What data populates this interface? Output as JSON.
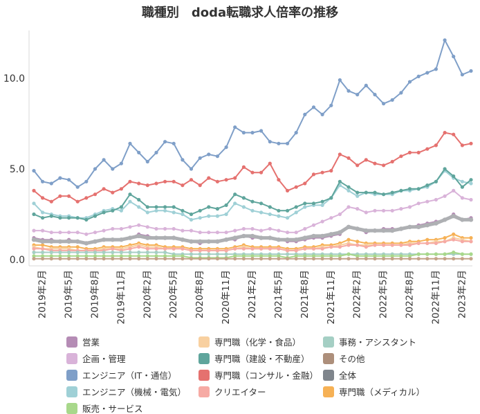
{
  "chart_data": {
    "type": "line",
    "title": "職種別　doda転職求人倍率の推移",
    "xlabel": "",
    "ylabel": "",
    "ylim": [
      0,
      12.5
    ],
    "yticks": [
      "0.0",
      "5.0",
      "10.0"
    ],
    "ytick_values": [
      0,
      5,
      10
    ],
    "grid": false,
    "legend_position": "bottom",
    "x": [
      "2019年1月",
      "2019年2月",
      "2019年3月",
      "2019年4月",
      "2019年5月",
      "2019年6月",
      "2019年7月",
      "2019年8月",
      "2019年9月",
      "2019年10月",
      "2019年11月",
      "2019年12月",
      "2020年1月",
      "2020年2月",
      "2020年3月",
      "2020年4月",
      "2020年5月",
      "2020年6月",
      "2020年7月",
      "2020年8月",
      "2020年9月",
      "2020年10月",
      "2020年11月",
      "2020年12月",
      "2021年1月",
      "2021年2月",
      "2021年3月",
      "2021年4月",
      "2021年5月",
      "2021年6月",
      "2021年7月",
      "2021年8月",
      "2021年9月",
      "2021年10月",
      "2021年11月",
      "2021年12月",
      "2022年1月",
      "2022年2月",
      "2022年3月",
      "2022年4月",
      "2022年5月",
      "2022年6月",
      "2022年7月",
      "2022年8月",
      "2022年9月",
      "2022年10月",
      "2022年11月",
      "2022年12月",
      "2023年1月",
      "2023年2月",
      "2023年3月"
    ],
    "x_tick_labels": [
      "2019年2月",
      "2019年5月",
      "2019年8月",
      "2019年11月",
      "2020年2月",
      "2020年5月",
      "2020年8月",
      "2020年11月",
      "2021年2月",
      "2021年5月",
      "2021年8月",
      "2021年11月",
      "2022年2月",
      "2022年5月",
      "2022年8月",
      "2022年11月",
      "2023年2月"
    ],
    "x_tick_indices": [
      1,
      4,
      7,
      10,
      13,
      16,
      19,
      22,
      25,
      28,
      31,
      34,
      37,
      40,
      43,
      46,
      49
    ],
    "series": [
      {
        "name": "営業",
        "color": "#b58cb5",
        "width": 2,
        "values": [
          1.2,
          1.1,
          1.1,
          1.0,
          1.1,
          1.0,
          0.9,
          1.0,
          1.1,
          1.1,
          1.1,
          1.2,
          1.4,
          1.3,
          1.2,
          1.2,
          1.2,
          1.1,
          1.0,
          0.9,
          1.0,
          1.0,
          1.1,
          1.1,
          1.3,
          1.2,
          1.2,
          1.2,
          1.1,
          1.0,
          1.0,
          1.1,
          1.2,
          1.2,
          1.3,
          1.4,
          1.8,
          1.7,
          1.5,
          1.6,
          1.7,
          1.7,
          1.7,
          1.8,
          1.9,
          2.0,
          2.1,
          2.2,
          2.5,
          2.2,
          2.3
        ]
      },
      {
        "name": "企画・管理",
        "color": "#d9b3d9",
        "width": 2,
        "values": [
          1.6,
          1.6,
          1.5,
          1.5,
          1.5,
          1.5,
          1.4,
          1.5,
          1.6,
          1.7,
          1.7,
          1.8,
          1.9,
          1.8,
          1.7,
          1.7,
          1.7,
          1.6,
          1.6,
          1.5,
          1.5,
          1.5,
          1.5,
          1.6,
          1.7,
          1.7,
          1.6,
          1.7,
          1.6,
          1.5,
          1.5,
          1.7,
          1.9,
          2.1,
          2.3,
          2.5,
          2.9,
          2.8,
          2.6,
          2.7,
          2.7,
          2.7,
          2.8,
          2.9,
          3.1,
          3.2,
          3.3,
          3.5,
          3.8,
          3.4,
          3.3
        ]
      },
      {
        "name": "エンジニア（IT・通信）",
        "color": "#7f9fc8",
        "width": 2,
        "values": [
          4.9,
          4.3,
          4.2,
          4.5,
          4.4,
          4.0,
          4.3,
          5.0,
          5.5,
          5.0,
          5.3,
          6.4,
          5.9,
          5.4,
          5.9,
          6.5,
          6.4,
          5.5,
          5.0,
          5.6,
          5.8,
          5.7,
          6.2,
          7.3,
          7.0,
          7.0,
          7.1,
          6.5,
          6.4,
          6.4,
          7.0,
          8.0,
          8.4,
          8.0,
          8.5,
          9.9,
          9.3,
          9.1,
          9.6,
          9.1,
          8.6,
          8.8,
          9.2,
          9.8,
          10.1,
          10.3,
          10.5,
          12.1,
          11.2,
          10.2,
          10.4
        ]
      },
      {
        "name": "エンジニア（機械・電気）",
        "color": "#9fd0d6",
        "width": 2,
        "values": [
          3.1,
          2.6,
          2.5,
          2.4,
          2.4,
          2.3,
          2.3,
          2.5,
          2.7,
          2.8,
          2.7,
          3.2,
          2.9,
          2.6,
          2.7,
          2.7,
          2.6,
          2.5,
          2.2,
          2.3,
          2.4,
          2.4,
          2.5,
          3.1,
          2.9,
          2.7,
          2.6,
          2.5,
          2.4,
          2.3,
          2.6,
          2.9,
          3.0,
          3.0,
          3.4,
          4.1,
          3.8,
          3.5,
          3.7,
          3.6,
          3.6,
          3.6,
          3.8,
          3.8,
          3.9,
          4.0,
          4.3,
          4.9,
          4.5,
          4.3,
          4.2
        ]
      },
      {
        "name": "専門職（メディカル）",
        "color": "#f6b155",
        "width": 2,
        "values": [
          0.8,
          0.8,
          0.7,
          0.7,
          0.7,
          0.7,
          0.6,
          0.6,
          0.7,
          0.7,
          0.7,
          0.8,
          0.9,
          0.8,
          0.8,
          0.7,
          0.7,
          0.7,
          0.6,
          0.6,
          0.6,
          0.6,
          0.6,
          0.7,
          0.8,
          0.7,
          0.7,
          0.7,
          0.7,
          0.6,
          0.6,
          0.7,
          0.7,
          0.8,
          0.8,
          0.9,
          1.1,
          1.0,
          0.9,
          0.9,
          0.9,
          0.9,
          0.9,
          1.0,
          1.0,
          1.1,
          1.1,
          1.2,
          1.4,
          1.2,
          1.2
        ]
      },
      {
        "name": "専門職（化学・食品）",
        "color": "#f8d0a0",
        "width": 2,
        "values": [
          0.7,
          0.6,
          0.6,
          0.6,
          0.6,
          0.5,
          0.5,
          0.5,
          0.6,
          0.6,
          0.6,
          0.7,
          0.8,
          0.7,
          0.7,
          0.6,
          0.6,
          0.6,
          0.5,
          0.5,
          0.5,
          0.5,
          0.5,
          0.6,
          0.7,
          0.6,
          0.6,
          0.6,
          0.6,
          0.5,
          0.5,
          0.6,
          0.6,
          0.7,
          0.7,
          0.8,
          0.9,
          0.8,
          0.8,
          0.8,
          0.8,
          0.8,
          0.8,
          0.9,
          0.9,
          0.9,
          1.0,
          1.0,
          1.2,
          1.1,
          1.0
        ]
      },
      {
        "name": "専門職（建設・不動産）",
        "color": "#5fa59c",
        "width": 2,
        "values": [
          2.5,
          2.3,
          2.4,
          2.3,
          2.3,
          2.3,
          2.2,
          2.4,
          2.6,
          2.7,
          2.9,
          3.6,
          3.3,
          2.9,
          2.9,
          2.9,
          2.9,
          2.7,
          2.5,
          2.7,
          2.9,
          2.8,
          3.0,
          3.6,
          3.4,
          3.2,
          3.1,
          2.9,
          2.7,
          2.7,
          2.9,
          3.1,
          3.1,
          3.2,
          3.4,
          4.3,
          4.0,
          3.7,
          3.7,
          3.7,
          3.6,
          3.7,
          3.8,
          3.9,
          3.9,
          4.1,
          4.3,
          5.0,
          4.6,
          4.0,
          4.4
        ]
      },
      {
        "name": "専門職（コンサル・金融）",
        "color": "#e5716f",
        "width": 2,
        "values": [
          3.8,
          3.4,
          3.2,
          3.5,
          3.5,
          3.2,
          3.4,
          3.6,
          3.9,
          3.7,
          3.9,
          4.3,
          4.2,
          4.1,
          4.2,
          4.3,
          4.3,
          4.1,
          4.4,
          4.1,
          4.5,
          4.3,
          4.4,
          4.5,
          5.1,
          4.8,
          4.8,
          5.3,
          4.4,
          3.8,
          4.0,
          4.2,
          4.7,
          4.8,
          4.9,
          5.8,
          5.6,
          5.2,
          5.5,
          5.3,
          5.2,
          5.4,
          5.7,
          5.9,
          5.9,
          6.1,
          6.3,
          7.0,
          6.9,
          6.3,
          6.4
        ]
      },
      {
        "name": "クリエイター",
        "color": "#f6aaa4",
        "width": 2,
        "values": [
          0.6,
          0.6,
          0.5,
          0.5,
          0.5,
          0.5,
          0.5,
          0.5,
          0.5,
          0.6,
          0.5,
          0.6,
          0.7,
          0.6,
          0.6,
          0.6,
          0.6,
          0.6,
          0.5,
          0.5,
          0.5,
          0.5,
          0.5,
          0.6,
          0.6,
          0.6,
          0.6,
          0.6,
          0.6,
          0.5,
          0.5,
          0.6,
          0.6,
          0.6,
          0.7,
          0.7,
          0.8,
          0.8,
          0.7,
          0.8,
          0.8,
          0.8,
          0.8,
          0.8,
          0.9,
          0.9,
          0.9,
          1.0,
          1.1,
          1.0,
          1.0
        ]
      },
      {
        "name": "事務・アシスタント",
        "color": "#a5cfc4",
        "width": 2,
        "values": [
          0.4,
          0.4,
          0.4,
          0.4,
          0.4,
          0.4,
          0.4,
          0.4,
          0.4,
          0.4,
          0.4,
          0.4,
          0.4,
          0.4,
          0.4,
          0.4,
          0.3,
          0.3,
          0.3,
          0.3,
          0.3,
          0.3,
          0.3,
          0.3,
          0.3,
          0.3,
          0.3,
          0.3,
          0.3,
          0.3,
          0.3,
          0.3,
          0.3,
          0.3,
          0.3,
          0.3,
          0.3,
          0.3,
          0.3,
          0.3,
          0.3,
          0.3,
          0.3,
          0.3,
          0.3,
          0.3,
          0.3,
          0.3,
          0.3,
          0.3,
          0.3
        ]
      },
      {
        "name": "販売・サービス",
        "color": "#a8d88b",
        "width": 2,
        "values": [
          0.2,
          0.2,
          0.2,
          0.2,
          0.2,
          0.2,
          0.2,
          0.2,
          0.2,
          0.2,
          0.2,
          0.2,
          0.2,
          0.2,
          0.2,
          0.2,
          0.2,
          0.2,
          0.1,
          0.1,
          0.1,
          0.1,
          0.1,
          0.2,
          0.2,
          0.2,
          0.2,
          0.2,
          0.2,
          0.1,
          0.2,
          0.2,
          0.2,
          0.2,
          0.2,
          0.2,
          0.3,
          0.2,
          0.2,
          0.2,
          0.2,
          0.2,
          0.2,
          0.2,
          0.3,
          0.3,
          0.3,
          0.3,
          0.4,
          0.3,
          0.3
        ]
      },
      {
        "name": "その他",
        "color": "#c4a389",
        "width": 2,
        "values": [
          0.05,
          0.05,
          0.05,
          0.05,
          0.05,
          0.05,
          0.05,
          0.05,
          0.05,
          0.05,
          0.05,
          0.05,
          0.05,
          0.05,
          0.05,
          0.05,
          0.05,
          0.05,
          0.05,
          0.05,
          0.05,
          0.05,
          0.05,
          0.05,
          0.05,
          0.05,
          0.05,
          0.05,
          0.05,
          0.05,
          0.05,
          0.05,
          0.05,
          0.05,
          0.05,
          0.05,
          0.05,
          0.05,
          0.05,
          0.05,
          0.05,
          0.05,
          0.05,
          0.05,
          0.05,
          0.05,
          0.05,
          0.05,
          0.05,
          0.05,
          0.05
        ]
      },
      {
        "name": "全体",
        "color": "#aeb0b3",
        "width": 5,
        "values": [
          1.1,
          1.0,
          1.0,
          1.0,
          1.0,
          1.0,
          0.9,
          1.0,
          1.1,
          1.1,
          1.1,
          1.2,
          1.3,
          1.2,
          1.2,
          1.2,
          1.2,
          1.1,
          1.0,
          1.0,
          1.0,
          1.0,
          1.1,
          1.2,
          1.3,
          1.3,
          1.2,
          1.2,
          1.1,
          1.1,
          1.1,
          1.2,
          1.3,
          1.3,
          1.4,
          1.5,
          1.8,
          1.7,
          1.6,
          1.6,
          1.6,
          1.6,
          1.7,
          1.8,
          1.8,
          1.9,
          2.0,
          2.2,
          2.4,
          2.2,
          2.2
        ]
      }
    ],
    "legend": [
      {
        "name": "営業",
        "color": "#b58cb5"
      },
      {
        "name": "専門職（化学・食品）",
        "color": "#f8d0a0"
      },
      {
        "name": "事務・アシスタント",
        "color": "#a5cfc4"
      },
      {
        "name": "企画・管理",
        "color": "#d9b3d9"
      },
      {
        "name": "専門職（建設・不動産）",
        "color": "#5fa59c"
      },
      {
        "name": "その他",
        "color": "#ad8f7b"
      },
      {
        "name": "エンジニア（IT・通信）",
        "color": "#7f9fc8"
      },
      {
        "name": "専門職（コンサル・金融）",
        "color": "#e5716f"
      },
      {
        "name": "全体",
        "color": "#7f858c"
      },
      {
        "name": "エンジニア（機械・電気）",
        "color": "#9fd0d6"
      },
      {
        "name": "クリエイター",
        "color": "#f6aaa4"
      },
      {
        "name": "専門職（メディカル）",
        "color": "#f6b155"
      },
      {
        "name": "販売・サービス",
        "color": "#a8d88b"
      }
    ]
  }
}
